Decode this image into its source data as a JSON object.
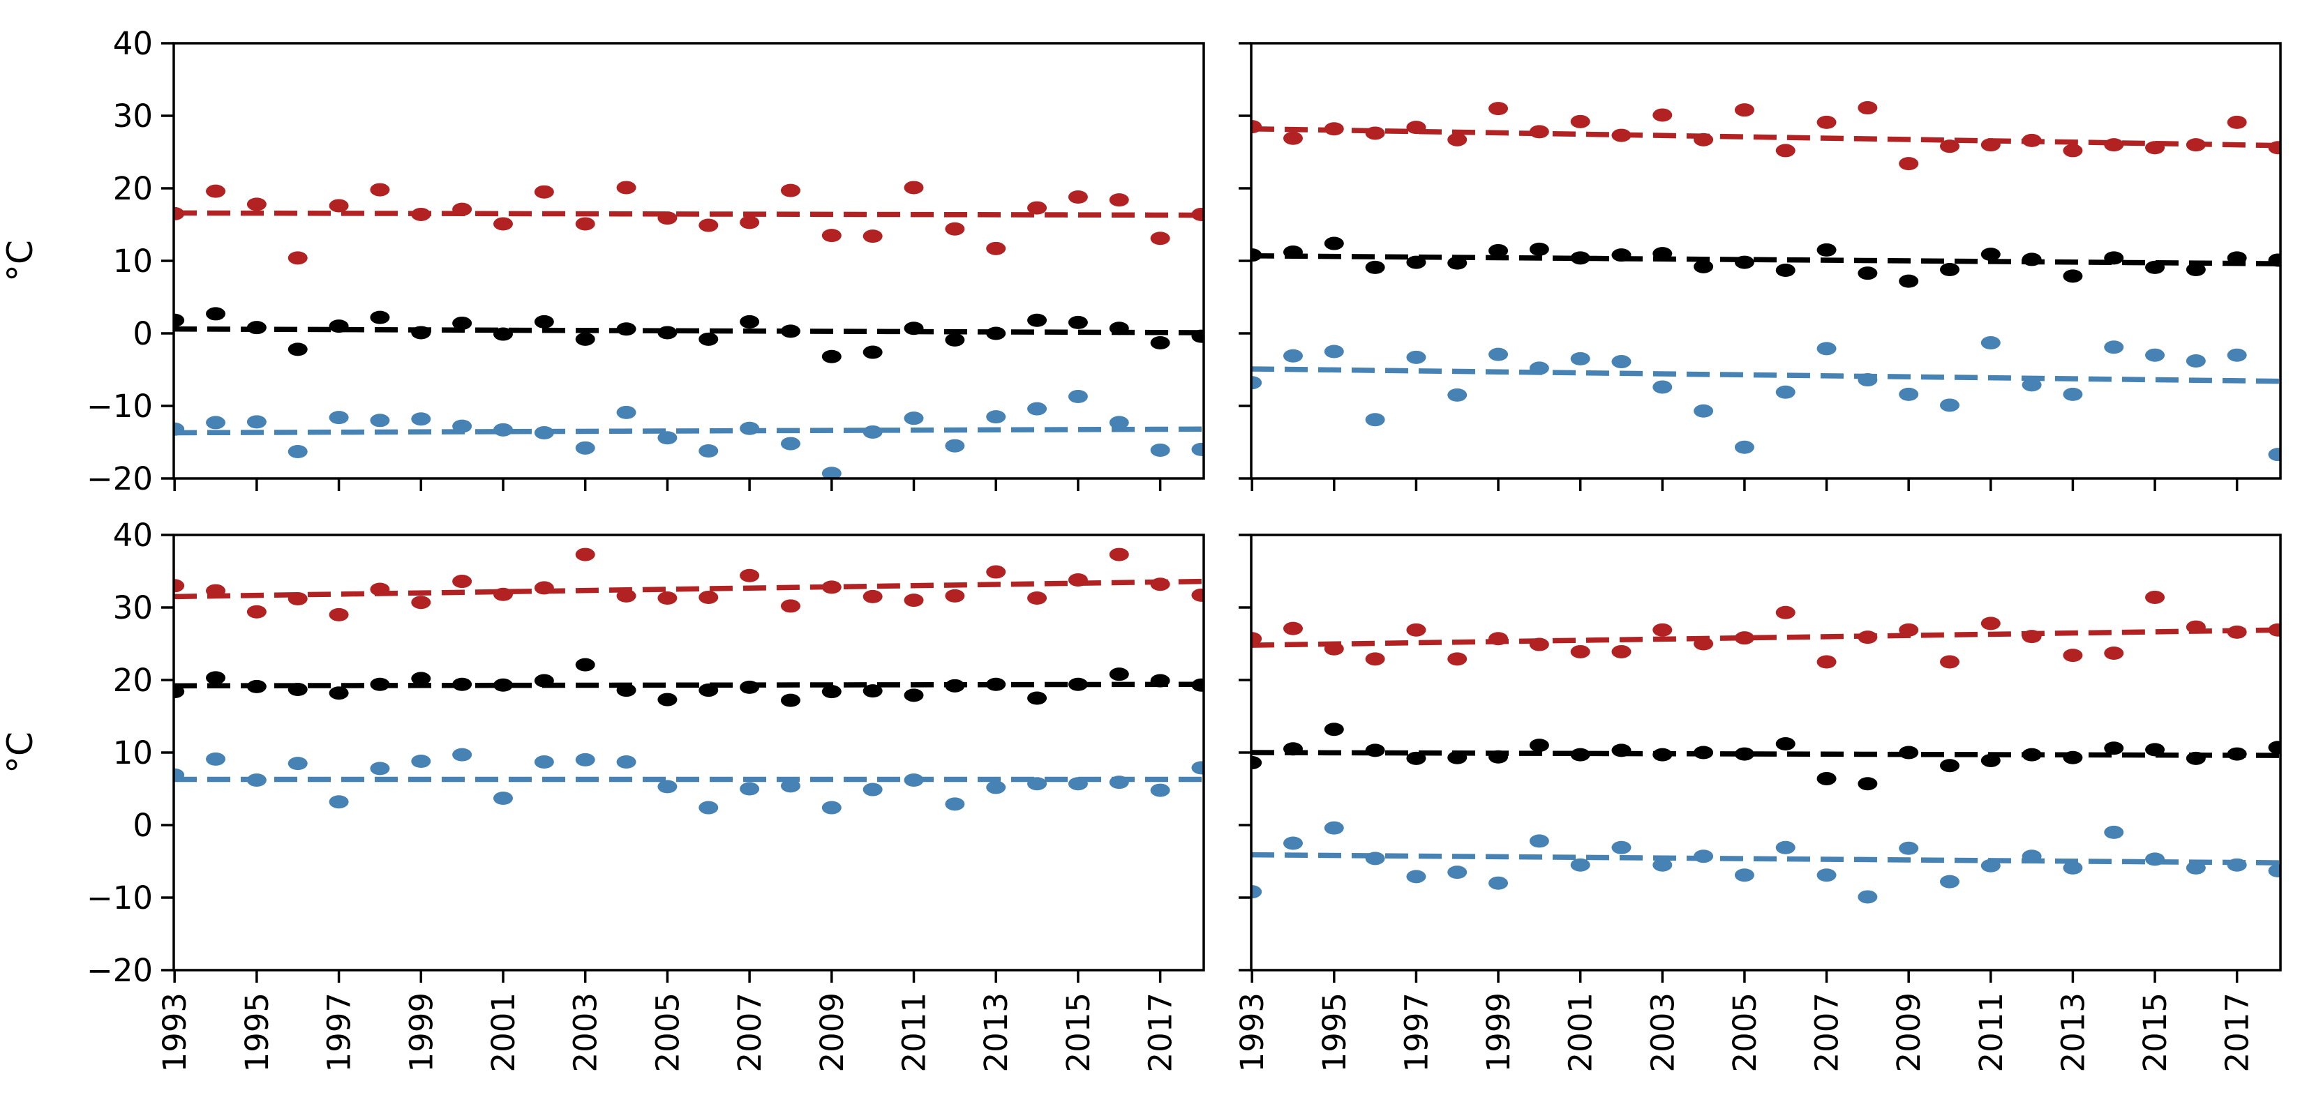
{
  "figure": {
    "background": "#ffffff",
    "description_visible_text_only": true
  },
  "chart_data": {
    "type": "scatter",
    "title": "",
    "xlabel": "",
    "ylabel": "°C",
    "grid": false,
    "legend": "none",
    "marker": "filled-ellipse",
    "trend_style": "dashed-line",
    "ylim": [
      -20,
      40
    ],
    "y_tick_values": [
      -20,
      -10,
      0,
      10,
      20,
      30,
      40
    ],
    "x_tick_labels": [
      "1993",
      "1995",
      "1997",
      "1999",
      "2001",
      "2003",
      "2005",
      "2007",
      "2009",
      "2011",
      "2013",
      "2015",
      "2017"
    ],
    "x_tick_years": [
      1993,
      1995,
      1997,
      1999,
      2001,
      2003,
      2005,
      2007,
      2009,
      2011,
      2013,
      2015,
      2017
    ],
    "years": [
      1993,
      1994,
      1995,
      1996,
      1997,
      1998,
      1999,
      2000,
      2001,
      2002,
      2003,
      2004,
      2005,
      2006,
      2007,
      2008,
      2009,
      2010,
      2011,
      2012,
      2013,
      2014,
      2015,
      2016,
      2017,
      2018
    ],
    "colors": {
      "red": "#b22222",
      "black": "#000000",
      "blue": "#4682b4"
    },
    "panels": [
      {
        "position": "top-left",
        "series": [
          {
            "name": "red",
            "color": "red",
            "values": [
              16.5,
              19.6,
              17.8,
              10.4,
              17.6,
              19.8,
              16.4,
              17.1,
              15.1,
              19.5,
              15.1,
              20.1,
              15.9,
              14.9,
              15.3,
              19.7,
              13.5,
              13.4,
              20.1,
              14.4,
              11.7,
              17.3,
              18.8,
              18.4,
              13.1,
              16.4
            ],
            "trend": {
              "start": 16.6,
              "end": 16.3
            }
          },
          {
            "name": "black",
            "color": "black",
            "values": [
              1.8,
              2.7,
              0.8,
              -2.2,
              1.0,
              2.2,
              0.1,
              1.4,
              -0.1,
              1.6,
              -0.8,
              0.6,
              0.1,
              -0.8,
              1.6,
              0.3,
              -3.2,
              -2.6,
              0.7,
              -0.9,
              0.0,
              1.8,
              1.5,
              0.7,
              -1.3,
              -0.4
            ],
            "trend": {
              "start": 0.6,
              "end": 0.1
            }
          },
          {
            "name": "blue",
            "color": "blue",
            "values": [
              -13.2,
              -12.3,
              -12.2,
              -16.3,
              -11.6,
              -12.0,
              -11.8,
              -12.8,
              -13.3,
              -13.7,
              -15.8,
              -10.9,
              -14.4,
              -16.2,
              -13.1,
              -15.2,
              -19.3,
              -13.6,
              -11.7,
              -15.5,
              -11.5,
              -10.4,
              -8.7,
              -12.3,
              -16.1,
              -16.0
            ],
            "trend": {
              "start": -13.7,
              "end": -13.2
            }
          }
        ]
      },
      {
        "position": "top-right",
        "series": [
          {
            "name": "red",
            "color": "red",
            "values": [
              28.5,
              26.9,
              28.2,
              27.6,
              28.4,
              26.7,
              31.0,
              27.8,
              29.2,
              27.3,
              30.1,
              26.7,
              30.8,
              25.2,
              29.1,
              31.1,
              23.4,
              25.8,
              26.0,
              26.6,
              25.2,
              26.0,
              25.6,
              26.0,
              29.1,
              25.6
            ],
            "trend": {
              "start": 28.2,
              "end": 25.9
            }
          },
          {
            "name": "black",
            "color": "black",
            "values": [
              10.8,
              11.2,
              12.4,
              9.1,
              9.8,
              9.7,
              11.4,
              11.6,
              10.4,
              10.8,
              11.0,
              9.2,
              9.8,
              8.7,
              11.5,
              8.3,
              7.2,
              8.8,
              10.9,
              10.2,
              7.9,
              10.4,
              9.1,
              8.8,
              10.4,
              10.1
            ],
            "trend": {
              "start": 10.7,
              "end": 9.6
            }
          },
          {
            "name": "blue",
            "color": "blue",
            "values": [
              -6.8,
              -3.1,
              -2.5,
              -11.9,
              -3.3,
              -8.5,
              -2.9,
              -4.8,
              -3.5,
              -3.9,
              -7.4,
              -10.7,
              -15.7,
              -8.1,
              -2.1,
              -6.4,
              -8.4,
              -9.9,
              -1.3,
              -7.1,
              -8.4,
              -1.9,
              -3.0,
              -3.8,
              -3.0,
              -16.7
            ],
            "trend": {
              "start": -4.9,
              "end": -6.6
            }
          }
        ]
      },
      {
        "position": "bottom-left",
        "series": [
          {
            "name": "red",
            "color": "red",
            "values": [
              33.0,
              32.3,
              29.4,
              31.2,
              29.0,
              32.5,
              30.7,
              33.6,
              31.8,
              32.7,
              37.3,
              31.6,
              31.3,
              31.4,
              34.4,
              30.2,
              32.8,
              31.5,
              31.0,
              31.6,
              34.9,
              31.3,
              33.8,
              37.3,
              33.2,
              31.7
            ],
            "trend": {
              "start": 31.5,
              "end": 33.6
            }
          },
          {
            "name": "black",
            "color": "black",
            "values": [
              18.4,
              20.3,
              19.1,
              18.7,
              18.2,
              19.4,
              20.2,
              19.4,
              19.3,
              19.9,
              22.1,
              18.6,
              17.3,
              18.6,
              19.0,
              17.2,
              18.4,
              18.5,
              17.9,
              19.2,
              19.4,
              17.5,
              19.4,
              20.8,
              19.9,
              19.3
            ],
            "trend": {
              "start": 19.2,
              "end": 19.4
            }
          },
          {
            "name": "blue",
            "color": "blue",
            "values": [
              6.9,
              9.1,
              6.2,
              8.5,
              3.2,
              7.8,
              8.8,
              9.7,
              3.7,
              8.7,
              9.0,
              8.7,
              5.3,
              2.4,
              5.0,
              5.4,
              2.4,
              4.9,
              6.2,
              2.9,
              5.2,
              5.7,
              5.7,
              5.9,
              4.8,
              7.9
            ],
            "trend": {
              "start": 6.3,
              "end": 6.3
            }
          }
        ]
      },
      {
        "position": "bottom-right",
        "series": [
          {
            "name": "red",
            "color": "red",
            "values": [
              25.7,
              27.1,
              24.3,
              22.9,
              26.9,
              22.9,
              25.7,
              24.9,
              23.9,
              23.9,
              26.9,
              25.0,
              25.8,
              29.3,
              22.5,
              25.9,
              26.9,
              22.5,
              27.8,
              26.0,
              23.4,
              23.7,
              31.4,
              27.3,
              26.6,
              26.9
            ],
            "trend": {
              "start": 24.8,
              "end": 26.9
            }
          },
          {
            "name": "black",
            "color": "black",
            "values": [
              8.6,
              10.5,
              13.2,
              10.3,
              9.2,
              9.3,
              9.4,
              11.0,
              9.7,
              10.3,
              9.7,
              10.0,
              9.8,
              11.2,
              6.4,
              5.7,
              10.0,
              8.2,
              8.9,
              9.7,
              9.3,
              10.6,
              10.4,
              9.2,
              9.8,
              10.7
            ],
            "trend": {
              "start": 10.0,
              "end": 9.6
            }
          },
          {
            "name": "blue",
            "color": "blue",
            "values": [
              -9.2,
              -2.5,
              -0.4,
              -4.6,
              -7.1,
              -6.5,
              -8.0,
              -2.2,
              -5.5,
              -3.1,
              -5.5,
              -4.3,
              -6.9,
              -3.1,
              -6.9,
              -9.9,
              -3.2,
              -7.8,
              -5.6,
              -4.3,
              -5.9,
              -1.0,
              -4.7,
              -5.9,
              -5.5,
              -6.3
            ],
            "trend": {
              "start": -4.1,
              "end": -5.2
            }
          }
        ]
      }
    ]
  }
}
